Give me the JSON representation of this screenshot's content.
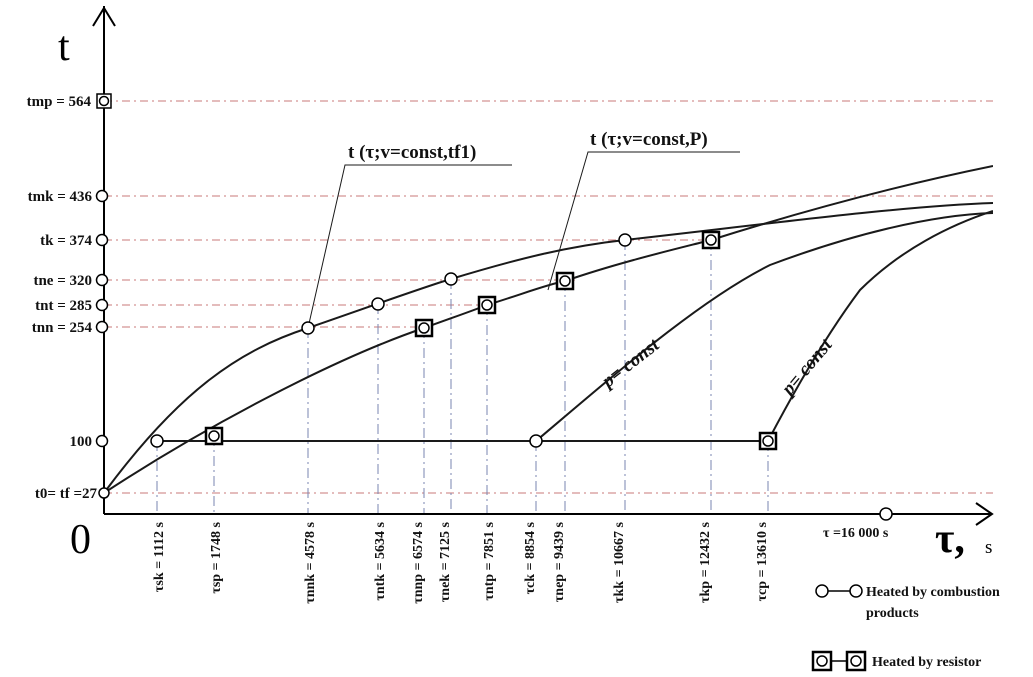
{
  "axes": {
    "y_label": "t",
    "x_label": "τ,",
    "x_unit": "s",
    "origin": "0"
  },
  "y_ticks": [
    {
      "label": "t0= tf =27",
      "value": 27
    },
    {
      "label": "100",
      "value": 100
    },
    {
      "label": "tnn = 254",
      "value": 254
    },
    {
      "label": "tnt = 285",
      "value": 285
    },
    {
      "label": "tne = 320",
      "value": 320
    },
    {
      "label": "tk = 374",
      "value": 374
    },
    {
      "label": "tmk = 436",
      "value": 436
    },
    {
      "label": "tmp = 564",
      "value": 564
    }
  ],
  "x_ticks": [
    {
      "label": "τsk = 1112 s",
      "value": 1112
    },
    {
      "label": "τsp = 1748 s",
      "value": 1748
    },
    {
      "label": "τnnk = 4578 s",
      "value": 4578
    },
    {
      "label": "τntk = 5634 s",
      "value": 5634
    },
    {
      "label": "τnnp = 6574 s",
      "value": 6574
    },
    {
      "label": "τnek = 7125 s",
      "value": 7125
    },
    {
      "label": "τntp = 7851 s",
      "value": 7851
    },
    {
      "label": "τck = 8854 s",
      "value": 8854
    },
    {
      "label": "τnep = 9439 s",
      "value": 9439
    },
    {
      "label": "τkk = 10667 s",
      "value": 10667
    },
    {
      "label": "τkp = 12432 s",
      "value": 12432
    },
    {
      "label": "τcp = 13610 s",
      "value": 13610
    }
  ],
  "tau_end_label": "τ =16 000 s",
  "curve_labels": {
    "combustion": "t (τ;v=const,tf1)",
    "resistor": "t (τ;v=const,P)",
    "p_const_1": "p= const",
    "p_const_2": "p= const"
  },
  "legend": {
    "combustion": "Heated by combustion products",
    "resistor": "Heated by resistor"
  },
  "colors": {
    "axis": "#000000",
    "curve": "#1a1a1a",
    "gridline_red": "#c87878",
    "dashed_drop": "#7a86b0"
  }
}
